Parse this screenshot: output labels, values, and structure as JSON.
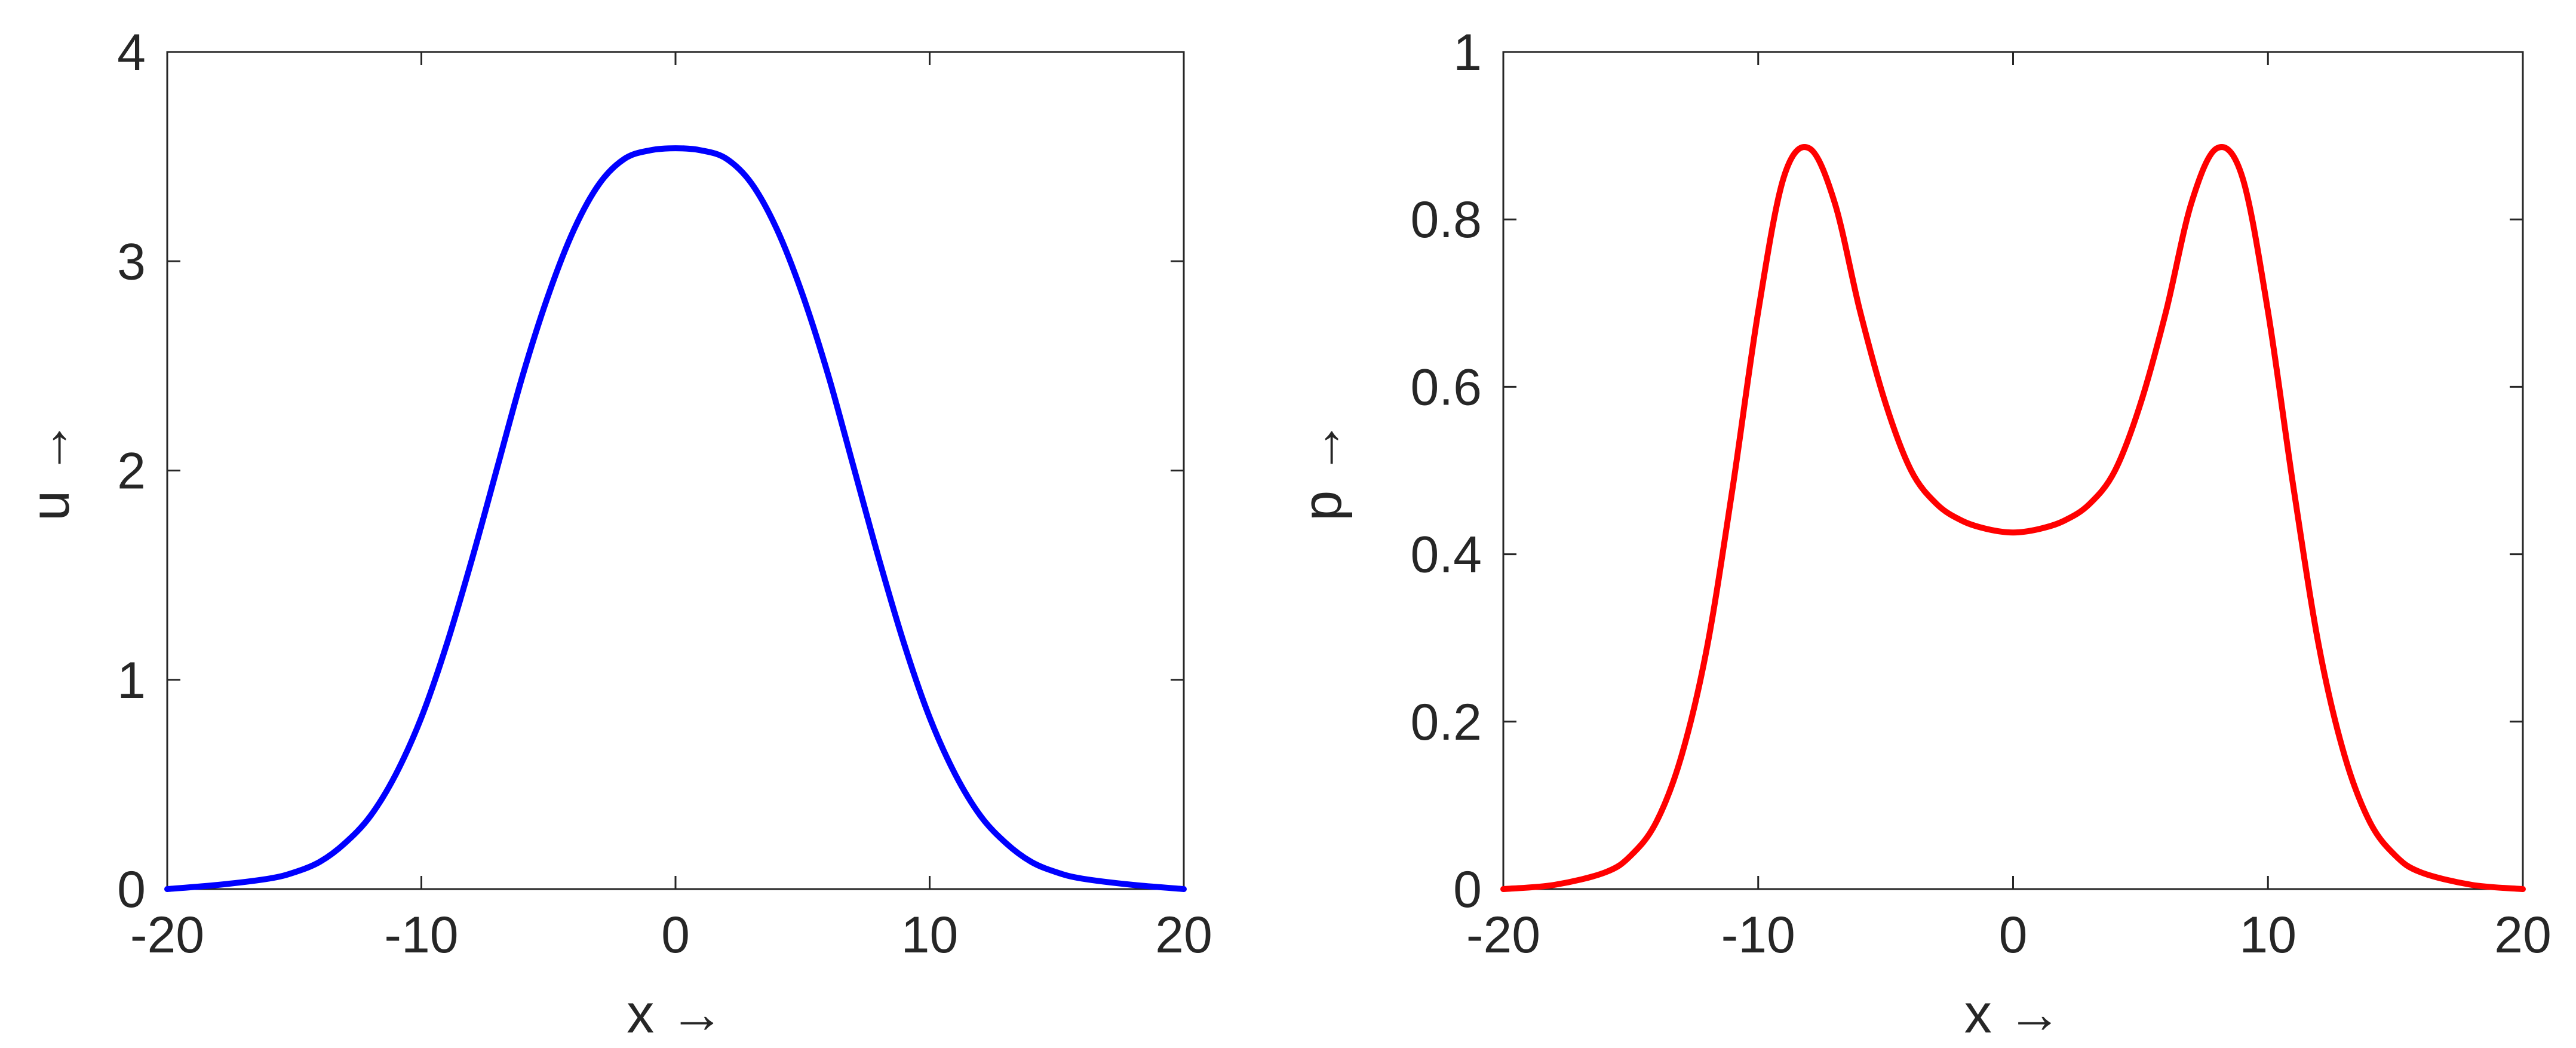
{
  "chart_data": [
    {
      "type": "line",
      "title": "",
      "xlabel": "x →",
      "ylabel": "u →",
      "xlim": [
        -20,
        20
      ],
      "ylim": [
        0,
        4
      ],
      "xticks": [
        -20,
        -10,
        0,
        10,
        20
      ],
      "yticks": [
        0,
        1,
        2,
        3,
        4
      ],
      "xtick_labels": [
        "-20",
        "-10",
        "0",
        "10",
        "20"
      ],
      "ytick_labels": [
        "0",
        "1",
        "2",
        "3",
        "4"
      ],
      "grid": false,
      "legend": "none",
      "series": [
        {
          "color": "#0000ff",
          "x": [
            -20,
            -18,
            -16,
            -15,
            -14,
            -13,
            -12,
            -11,
            -10,
            -9,
            -8,
            -7,
            -6,
            -5,
            -4,
            -3,
            -2,
            -1,
            0,
            1,
            2,
            3,
            4,
            5,
            6,
            7,
            8,
            9,
            10,
            11,
            12,
            13,
            14,
            15,
            16,
            18,
            20
          ],
          "y": [
            0.0,
            0.02,
            0.05,
            0.08,
            0.13,
            0.22,
            0.35,
            0.55,
            0.82,
            1.17,
            1.58,
            2.02,
            2.46,
            2.84,
            3.15,
            3.37,
            3.49,
            3.53,
            3.54,
            3.53,
            3.49,
            3.37,
            3.15,
            2.84,
            2.46,
            2.02,
            1.58,
            1.17,
            0.82,
            0.55,
            0.35,
            0.22,
            0.13,
            0.08,
            0.05,
            0.02,
            0.0
          ]
        }
      ]
    },
    {
      "type": "line",
      "title": "",
      "xlabel": "x →",
      "ylabel": "p →",
      "xlim": [
        -20,
        20
      ],
      "ylim": [
        0,
        1
      ],
      "xticks": [
        -20,
        -10,
        0,
        10,
        20
      ],
      "yticks": [
        0,
        0.2,
        0.4,
        0.6,
        0.8,
        1
      ],
      "xtick_labels": [
        "-20",
        "-10",
        "0",
        "10",
        "20"
      ],
      "ytick_labels": [
        "0",
        "0.2",
        "0.4",
        "0.6",
        "0.8",
        "1"
      ],
      "grid": false,
      "legend": "none",
      "series": [
        {
          "color": "#ff0000",
          "x": [
            -20,
            -18,
            -16,
            -15,
            -14,
            -13,
            -12,
            -11,
            -10,
            -9,
            -8,
            -7,
            -6,
            -5,
            -4,
            -3,
            -2,
            -1,
            0,
            1,
            2,
            3,
            4,
            5,
            6,
            7,
            8,
            9,
            10,
            11,
            12,
            13,
            14,
            15,
            16,
            18,
            20
          ],
          "y": [
            0.0,
            0.005,
            0.02,
            0.04,
            0.08,
            0.16,
            0.29,
            0.48,
            0.69,
            0.85,
            0.885,
            0.82,
            0.69,
            0.58,
            0.5,
            0.46,
            0.44,
            0.43,
            0.426,
            0.43,
            0.44,
            0.46,
            0.5,
            0.58,
            0.69,
            0.82,
            0.885,
            0.85,
            0.69,
            0.48,
            0.29,
            0.16,
            0.08,
            0.04,
            0.02,
            0.005,
            0.0
          ]
        }
      ]
    }
  ]
}
